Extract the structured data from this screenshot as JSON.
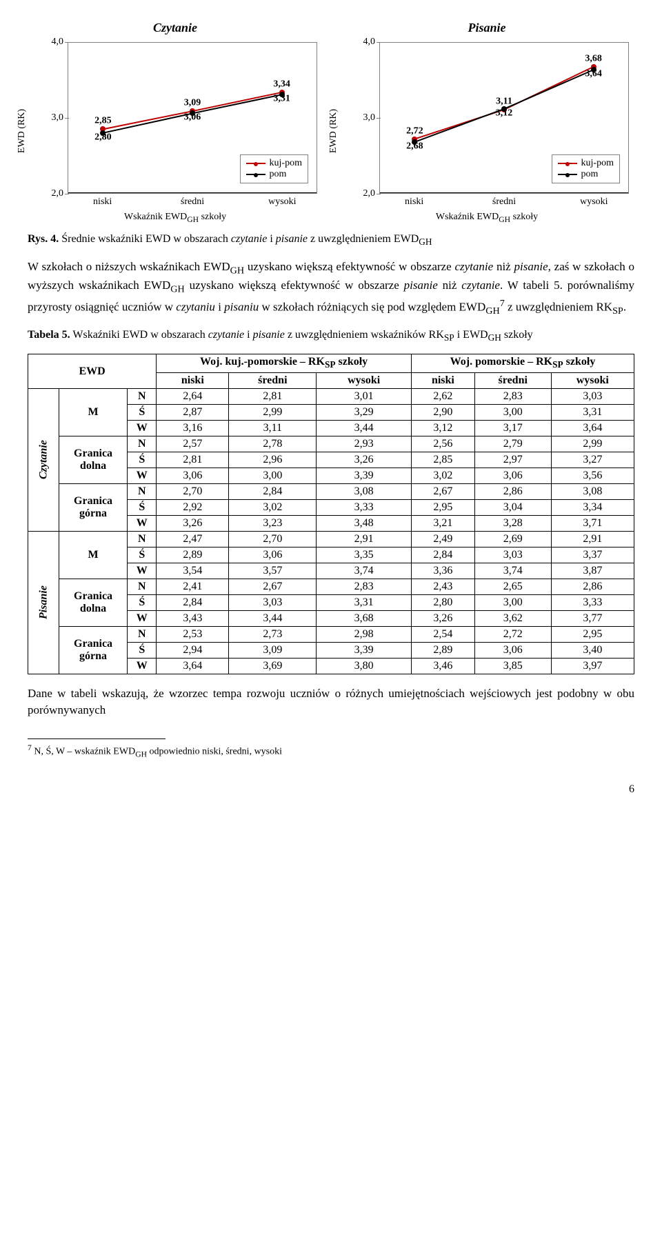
{
  "charts": {
    "ylabel": "EWD (RK)",
    "xlabel_html": "Wskaźnik EWD<sub>GH</sub> szkoły",
    "xticks": [
      "niski",
      "średni",
      "wysoki"
    ],
    "yticks": [
      2.0,
      3.0,
      4.0
    ],
    "ylim": [
      2.0,
      4.0
    ],
    "legend": [
      {
        "label": "kuj-pom",
        "color": "#c00000"
      },
      {
        "label": "pom",
        "color": "#000000"
      }
    ],
    "left": {
      "title": "Czytanie",
      "series": [
        {
          "name": "kuj-pom",
          "color": "#c00000",
          "values": [
            2.85,
            3.09,
            3.34
          ],
          "labels": [
            "2,85",
            "3,09",
            "3,34"
          ]
        },
        {
          "name": "pom",
          "color": "#000000",
          "values": [
            2.8,
            3.06,
            3.31
          ],
          "labels": [
            "2,80",
            "3,06",
            "3,31"
          ]
        }
      ]
    },
    "right": {
      "title": "Pisanie",
      "series": [
        {
          "name": "kuj-pom",
          "color": "#c00000",
          "values": [
            2.72,
            3.11,
            3.68
          ],
          "labels": [
            "2,72",
            "3,11",
            "3,68"
          ]
        },
        {
          "name": "pom",
          "color": "#000000",
          "values": [
            2.68,
            3.12,
            3.64
          ],
          "labels": [
            "2,68",
            "3,12",
            "3,64"
          ]
        }
      ]
    }
  },
  "fig_caption_prefix": "Rys. 4.",
  "fig_caption_rest_html": " Średnie wskaźniki EWD w obszarach <i>czytanie</i> i <i>pisanie</i> z uwzględnieniem EWD<sub>GH</sub>",
  "para1_html": "W szkołach o niższych wskaźnikach EWD<sub>GH</sub> uzyskano większą efektywność w obszarze <i>czytanie</i> niż <i>pisanie</i>, zaś w szkołach o wyższych wskaźnikach EWD<sub>GH</sub> uzyskano większą efektywność w obszarze <i>pisanie</i> niż <i>czytanie</i>. W tabeli 5. porównaliśmy przyrosty osiągnięć uczniów w <i>czytaniu</i> i <i>pisaniu</i> w szkołach różniących się pod względem EWD<sub>GH</sub><sup>7</sup> z uwzględnieniem RK<sub>SP</sub>.",
  "tab_caption_prefix": "Tabela 5.",
  "tab_caption_rest_html": " Wskaźniki EWD w obszarach <i>czytanie</i> i <i>pisanie</i> z uwzględnieniem wskaźników RK<sub>SP</sub> i EWD<sub>GH</sub> szkoły",
  "table": {
    "col_group_left_html": "Woj. kuj.-pomorskie – RK<sub>SP</sub> szkoły",
    "col_group_right_html": "Woj. pomorskie – RK<sub>SP</sub> szkoły",
    "ewd_label": "EWD",
    "sub_cols": [
      "niski",
      "średni",
      "wysoki",
      "niski",
      "średni",
      "wysoki"
    ],
    "section_labels": [
      "Czytanie",
      "Pisanie"
    ],
    "row_groups": [
      "M",
      "Granica dolna",
      "Granica górna"
    ],
    "level_labels": [
      "N",
      "Ś",
      "W"
    ],
    "sections": [
      {
        "rows": [
          [
            "2,64",
            "2,81",
            "3,01",
            "2,62",
            "2,83",
            "3,03"
          ],
          [
            "2,87",
            "2,99",
            "3,29",
            "2,90",
            "3,00",
            "3,31"
          ],
          [
            "3,16",
            "3,11",
            "3,44",
            "3,12",
            "3,17",
            "3,64"
          ],
          [
            "2,57",
            "2,78",
            "2,93",
            "2,56",
            "2,79",
            "2,99"
          ],
          [
            "2,81",
            "2,96",
            "3,26",
            "2,85",
            "2,97",
            "3,27"
          ],
          [
            "3,06",
            "3,00",
            "3,39",
            "3,02",
            "3,06",
            "3,56"
          ],
          [
            "2,70",
            "2,84",
            "3,08",
            "2,67",
            "2,86",
            "3,08"
          ],
          [
            "2,92",
            "3,02",
            "3,33",
            "2,95",
            "3,04",
            "3,34"
          ],
          [
            "3,26",
            "3,23",
            "3,48",
            "3,21",
            "3,28",
            "3,71"
          ]
        ]
      },
      {
        "rows": [
          [
            "2,47",
            "2,70",
            "2,91",
            "2,49",
            "2,69",
            "2,91"
          ],
          [
            "2,89",
            "3,06",
            "3,35",
            "2,84",
            "3,03",
            "3,37"
          ],
          [
            "3,54",
            "3,57",
            "3,74",
            "3,36",
            "3,74",
            "3,87"
          ],
          [
            "2,41",
            "2,67",
            "2,83",
            "2,43",
            "2,65",
            "2,86"
          ],
          [
            "2,84",
            "3,03",
            "3,31",
            "2,80",
            "3,00",
            "3,33"
          ],
          [
            "3,43",
            "3,44",
            "3,68",
            "3,26",
            "3,62",
            "3,77"
          ],
          [
            "2,53",
            "2,73",
            "2,98",
            "2,54",
            "2,72",
            "2,95"
          ],
          [
            "2,94",
            "3,09",
            "3,39",
            "2,89",
            "3,06",
            "3,40"
          ],
          [
            "3,64",
            "3,69",
            "3,80",
            "3,46",
            "3,85",
            "3,97"
          ]
        ]
      }
    ]
  },
  "para2": "Dane w tabeli wskazują, że wzorzec tempa rozwoju uczniów o różnych umiejętnościach wejściowych jest podobny w obu porównywanych",
  "footnote_html": "<sup>7</sup> N, Ś, W – wskaźnik EWD<sub>GH</sub> odpowiednio niski, średni, wysoki",
  "page_number": "6"
}
